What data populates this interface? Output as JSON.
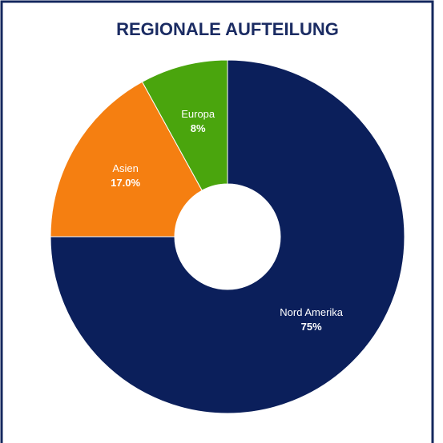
{
  "chart_data": {
    "type": "donut",
    "title": "REGIONALE AUFTEILUNG",
    "categories": [
      "Nord Amerika",
      "Asien",
      "Europa"
    ],
    "values": [
      75,
      17,
      8
    ],
    "value_labels": [
      "75%",
      "17.0%",
      "8%"
    ],
    "colors": [
      "#0b1f5b",
      "#f57f11",
      "#4aa50d"
    ]
  }
}
